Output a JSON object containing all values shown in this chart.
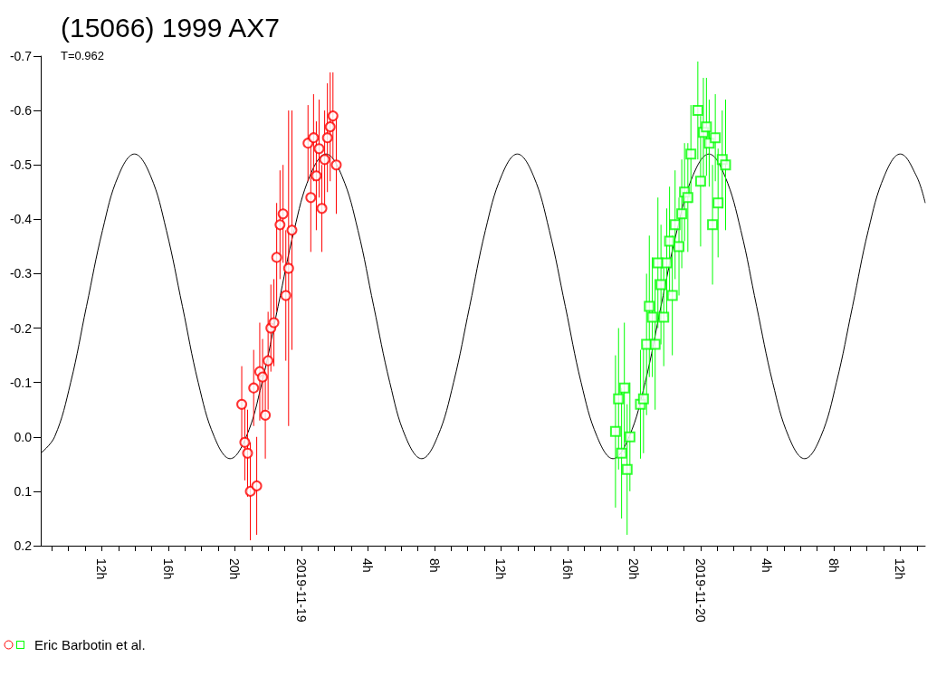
{
  "chart_data": {
    "type": "scatter",
    "title": "(15066) 1999 AX7",
    "subtitle": "T=0.962",
    "xlim": [
      "2019-11-18T08:20",
      "2019-11-20T13:30"
    ],
    "ylim": [
      0.2,
      -0.7
    ],
    "yticks": [
      -0.7,
      -0.6,
      -0.5,
      -0.4,
      -0.3,
      -0.2,
      -0.1,
      {
        "value": 0,
        "label": "0.0"
      },
      0.1,
      0.2
    ],
    "xticks": [
      {
        "value": "2019-11-18T09:00",
        "label": null
      },
      {
        "value": "2019-11-18T10:00",
        "label": null
      },
      {
        "value": "2019-11-18T11:00",
        "label": null
      },
      {
        "value": "2019-11-18T12:00",
        "label": "12h"
      },
      {
        "value": "2019-11-18T13:00",
        "label": null
      },
      {
        "value": "2019-11-18T14:00",
        "label": null
      },
      {
        "value": "2019-11-18T15:00",
        "label": null
      },
      {
        "value": "2019-11-18T16:00",
        "label": "16h"
      },
      {
        "value": "2019-11-18T17:00",
        "label": null
      },
      {
        "value": "2019-11-18T18:00",
        "label": null
      },
      {
        "value": "2019-11-18T19:00",
        "label": null
      },
      {
        "value": "2019-11-18T20:00",
        "label": "20h"
      },
      {
        "value": "2019-11-18T21:00",
        "label": null
      },
      {
        "value": "2019-11-18T22:00",
        "label": null
      },
      {
        "value": "2019-11-18T23:00",
        "label": null
      },
      {
        "value": "2019-11-19T00:00",
        "label": "2019-11-19"
      },
      {
        "value": "2019-11-19T01:00",
        "label": null
      },
      {
        "value": "2019-11-19T02:00",
        "label": null
      },
      {
        "value": "2019-11-19T03:00",
        "label": null
      },
      {
        "value": "2019-11-19T04:00",
        "label": "4h"
      },
      {
        "value": "2019-11-19T05:00",
        "label": null
      },
      {
        "value": "2019-11-19T06:00",
        "label": null
      },
      {
        "value": "2019-11-19T07:00",
        "label": null
      },
      {
        "value": "2019-11-19T08:00",
        "label": "8h"
      },
      {
        "value": "2019-11-19T09:00",
        "label": null
      },
      {
        "value": "2019-11-19T10:00",
        "label": null
      },
      {
        "value": "2019-11-19T11:00",
        "label": null
      },
      {
        "value": "2019-11-19T12:00",
        "label": "12h"
      },
      {
        "value": "2019-11-19T13:00",
        "label": null
      },
      {
        "value": "2019-11-19T14:00",
        "label": null
      },
      {
        "value": "2019-11-19T15:00",
        "label": null
      },
      {
        "value": "2019-11-19T16:00",
        "label": "16h"
      },
      {
        "value": "2019-11-19T17:00",
        "label": null
      },
      {
        "value": "2019-11-19T18:00",
        "label": null
      },
      {
        "value": "2019-11-19T19:00",
        "label": null
      },
      {
        "value": "2019-11-19T20:00",
        "label": "20h"
      },
      {
        "value": "2019-11-19T21:00",
        "label": null
      },
      {
        "value": "2019-11-19T22:00",
        "label": null
      },
      {
        "value": "2019-11-19T23:00",
        "label": null
      },
      {
        "value": "2019-11-20T00:00",
        "label": "2019-11-20"
      },
      {
        "value": "2019-11-20T01:00",
        "label": null
      },
      {
        "value": "2019-11-20T02:00",
        "label": null
      },
      {
        "value": "2019-11-20T03:00",
        "label": null
      },
      {
        "value": "2019-11-20T04:00",
        "label": "4h"
      },
      {
        "value": "2019-11-20T05:00",
        "label": null
      },
      {
        "value": "2019-11-20T06:00",
        "label": null
      },
      {
        "value": "2019-11-20T07:00",
        "label": null
      },
      {
        "value": "2019-11-20T08:00",
        "label": "8h"
      },
      {
        "value": "2019-11-20T09:00",
        "label": null
      },
      {
        "value": "2019-11-20T10:00",
        "label": null
      },
      {
        "value": "2019-11-20T11:00",
        "label": null
      },
      {
        "value": "2019-11-20T12:00",
        "label": "12h"
      },
      {
        "value": "2019-11-20T13:00",
        "label": null
      }
    ],
    "legend": "bottom left",
    "series": [
      {
        "type": "line",
        "color": "#000000",
        "marker": "none",
        "x": [
          "2019-11-18T08:20",
          "2019-11-18T09:10",
          "2019-11-18T10:08",
          "2019-11-18T11:05",
          "2019-11-18T12:03",
          "2019-11-18T13:00",
          "2019-11-18T13:58",
          "2019-11-18T14:56",
          "2019-11-18T15:53",
          "2019-11-18T16:51",
          "2019-11-18T17:48",
          "2019-11-18T18:46",
          "2019-11-18T19:43",
          "2019-11-18T20:41",
          "2019-11-18T21:38",
          "2019-11-18T22:36",
          "2019-11-18T23:34",
          "2019-11-19T00:31",
          "2019-11-19T01:29",
          "2019-11-19T02:26",
          "2019-11-19T03:24",
          "2019-11-19T04:21",
          "2019-11-19T05:19",
          "2019-11-19T06:16",
          "2019-11-19T07:14",
          "2019-11-19T08:11",
          "2019-11-19T09:09",
          "2019-11-19T10:07",
          "2019-11-19T11:04",
          "2019-11-19T12:02",
          "2019-11-19T12:59",
          "2019-11-19T13:57",
          "2019-11-19T14:54",
          "2019-11-19T15:52",
          "2019-11-19T16:49",
          "2019-11-19T17:47",
          "2019-11-19T18:44",
          "2019-11-19T19:42",
          "2019-11-19T20:40",
          "2019-11-19T21:37",
          "2019-11-19T22:35",
          "2019-11-19T23:32",
          "2019-11-20T00:30",
          "2019-11-20T01:27",
          "2019-11-20T02:25",
          "2019-11-20T03:22",
          "2019-11-20T04:20",
          "2019-11-20T05:18",
          "2019-11-20T06:15",
          "2019-11-20T07:13",
          "2019-11-20T08:10",
          "2019-11-20T09:08",
          "2019-11-20T10:05",
          "2019-11-20T11:03",
          "2019-11-20T12:00",
          "2019-11-20T12:58",
          "2019-11-20T13:30"
        ],
        "values": [
          0.03,
          0.0,
          -0.1,
          -0.24,
          -0.38,
          -0.48,
          -0.52,
          -0.48,
          -0.38,
          -0.24,
          -0.1,
          0.0,
          0.04,
          0.0,
          -0.1,
          -0.24,
          -0.38,
          -0.48,
          -0.52,
          -0.48,
          -0.38,
          -0.24,
          -0.1,
          0.0,
          0.04,
          0.0,
          -0.1,
          -0.24,
          -0.38,
          -0.48,
          -0.52,
          -0.48,
          -0.38,
          -0.24,
          -0.1,
          0.0,
          0.04,
          0.0,
          -0.1,
          -0.24,
          -0.38,
          -0.48,
          -0.52,
          -0.48,
          -0.38,
          -0.24,
          -0.1,
          0.0,
          0.04,
          0.0,
          -0.1,
          -0.24,
          -0.38,
          -0.48,
          -0.52,
          -0.48,
          -0.43
        ]
      },
      {
        "type": "scatter",
        "name": "Eric Barbotin et al.",
        "color": "#ff0000",
        "marker": "circle",
        "x": [
          "2019-11-18T20:25",
          "2019-11-18T20:36",
          "2019-11-18T20:46",
          "2019-11-18T20:56",
          "2019-11-18T21:08",
          "2019-11-18T21:19",
          "2019-11-18T21:30",
          "2019-11-18T21:40",
          "2019-11-18T21:50",
          "2019-11-18T22:00",
          "2019-11-18T22:10",
          "2019-11-18T22:21",
          "2019-11-18T22:31",
          "2019-11-18T22:43",
          "2019-11-18T22:54",
          "2019-11-18T23:04",
          "2019-11-18T23:14",
          "2019-11-18T23:26",
          "2019-11-19T00:24",
          "2019-11-19T00:34",
          "2019-11-19T00:44",
          "2019-11-19T00:54",
          "2019-11-19T01:04",
          "2019-11-19T01:14",
          "2019-11-19T01:24",
          "2019-11-19T01:34",
          "2019-11-19T01:44",
          "2019-11-19T01:54",
          "2019-11-19T02:06"
        ],
        "values": [
          -0.06,
          0.01,
          0.03,
          0.1,
          -0.09,
          0.09,
          -0.12,
          -0.11,
          -0.04,
          -0.14,
          -0.2,
          -0.21,
          -0.33,
          -0.39,
          -0.41,
          -0.26,
          -0.31,
          -0.38,
          -0.54,
          -0.44,
          -0.55,
          -0.48,
          -0.53,
          -0.42,
          -0.51,
          -0.55,
          -0.57,
          -0.59,
          -0.5
        ],
        "errors": [
          0.07,
          0.07,
          0.08,
          0.09,
          0.07,
          0.09,
          0.09,
          0.07,
          0.08,
          0.09,
          0.08,
          0.08,
          0.1,
          0.1,
          0.09,
          0.12,
          0.29,
          0.22,
          0.07,
          0.1,
          0.08,
          0.1,
          0.09,
          0.08,
          0.09,
          0.1,
          0.1,
          0.08,
          0.09
        ]
      },
      {
        "type": "scatter",
        "color": "#00ff00",
        "marker": "square",
        "x": [
          "2019-11-19T18:53",
          "2019-11-19T19:04",
          "2019-11-19T19:15",
          "2019-11-19T19:25",
          "2019-11-19T19:35",
          "2019-11-19T19:45",
          "2019-11-19T20:23",
          "2019-11-19T20:34",
          "2019-11-19T20:45",
          "2019-11-19T20:55",
          "2019-11-19T21:06",
          "2019-11-19T21:16",
          "2019-11-19T21:26",
          "2019-11-19T21:37",
          "2019-11-19T21:47",
          "2019-11-19T21:58",
          "2019-11-19T22:08",
          "2019-11-19T22:18",
          "2019-11-19T22:28",
          "2019-11-19T22:42",
          "2019-11-19T22:52",
          "2019-11-19T23:02",
          "2019-11-19T23:14",
          "2019-11-19T23:25",
          "2019-11-19T23:50",
          "2019-11-20T00:00",
          "2019-11-20T00:10",
          "2019-11-20T00:21",
          "2019-11-20T00:31",
          "2019-11-20T00:43",
          "2019-11-20T00:53",
          "2019-11-20T01:03",
          "2019-11-20T01:18",
          "2019-11-20T01:30"
        ],
        "values": [
          -0.01,
          -0.07,
          0.03,
          -0.09,
          0.06,
          0.0,
          -0.06,
          -0.07,
          -0.17,
          -0.24,
          -0.22,
          -0.17,
          -0.32,
          -0.28,
          -0.22,
          -0.32,
          -0.36,
          -0.26,
          -0.39,
          -0.35,
          -0.41,
          -0.45,
          -0.44,
          -0.52,
          -0.6,
          -0.47,
          -0.56,
          -0.57,
          -0.54,
          -0.39,
          -0.55,
          -0.43,
          -0.51,
          -0.5
        ],
        "errors": [
          0.14,
          0.13,
          0.12,
          0.12,
          0.12,
          0.1,
          0.1,
          0.1,
          0.13,
          0.13,
          0.11,
          0.12,
          0.12,
          0.11,
          0.09,
          0.1,
          0.1,
          0.11,
          0.1,
          0.09,
          0.1,
          0.09,
          0.1,
          0.09,
          0.09,
          0.12,
          0.1,
          0.09,
          0.08,
          0.11,
          0.08,
          0.1,
          0.09,
          0.12
        ]
      }
    ]
  }
}
